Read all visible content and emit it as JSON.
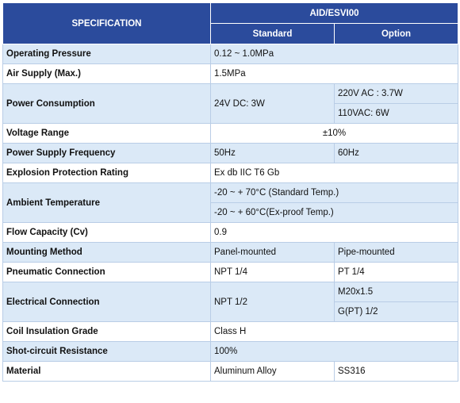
{
  "header": {
    "spec_label": "SPECIFICATION",
    "model": "AID/ESVI00",
    "standard": "Standard",
    "option": "Option"
  },
  "rows": {
    "operating_pressure": {
      "label": "Operating Pressure",
      "value": "0.12 ~ 1.0MPa"
    },
    "air_supply": {
      "label": "Air Supply (Max.)",
      "value": "1.5MPa"
    },
    "power_consumption": {
      "label": "Power Consumption",
      "standard": "24V DC: 3W",
      "option1": "220V AC : 3.7W",
      "option2": "110VAC: 6W"
    },
    "voltage_range": {
      "label": "Voltage Range",
      "value": "±10%"
    },
    "power_supply_frequency": {
      "label": "Power Supply Frequency",
      "standard": "50Hz",
      "option": "60Hz"
    },
    "explosion_protection": {
      "label": "Explosion Protection Rating",
      "value": "Ex db IIC T6 Gb"
    },
    "ambient_temperature": {
      "label": "Ambient Temperature",
      "value1": "-20 ~ + 70°C (Standard Temp.)",
      "value2": "-20 ~ + 60°C(Ex-proof Temp.)"
    },
    "flow_capacity": {
      "label": "Flow Capacity (Cv)",
      "value": "0.9"
    },
    "mounting_method": {
      "label": "Mounting Method",
      "standard": "Panel-mounted",
      "option": "Pipe-mounted"
    },
    "pneumatic_connection": {
      "label": "Pneumatic Connection",
      "standard": "NPT 1/4",
      "option": "PT 1/4"
    },
    "electrical_connection": {
      "label": "Electrical Connection",
      "standard": "NPT 1/2",
      "option1": "M20x1.5",
      "option2": "G(PT) 1/2"
    },
    "coil_insulation": {
      "label": "Coil Insulation Grade",
      "value": "Class H"
    },
    "short_circuit": {
      "label": "Shot-circuit Resistance",
      "value": "100%"
    },
    "material": {
      "label": "Material",
      "standard": "Aluminum Alloy",
      "option": "SS316"
    }
  }
}
